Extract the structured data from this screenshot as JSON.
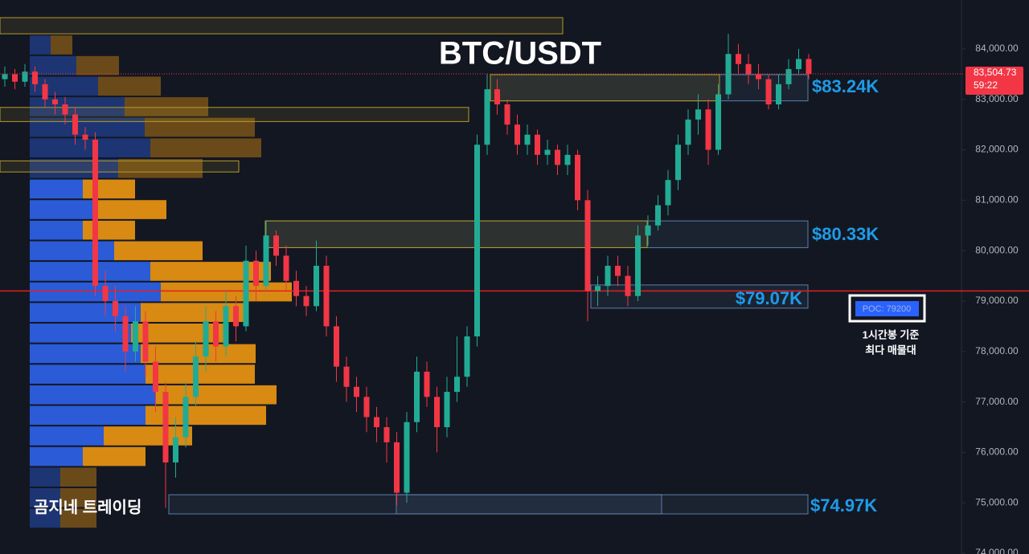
{
  "chart_data": {
    "type": "candlestick",
    "title": "BTC/USDT",
    "ylim": [
      73985,
      84970
    ],
    "yticks": [
      {
        "value": 74000,
        "label": "74,000.00"
      },
      {
        "value": 75000,
        "label": "75,000.00"
      },
      {
        "value": 76000,
        "label": "76,000.00"
      },
      {
        "value": 77000,
        "label": "77,000.00"
      },
      {
        "value": 78000,
        "label": "78,000.00"
      },
      {
        "value": 79000,
        "label": "79,000.00"
      },
      {
        "value": 80000,
        "label": "80,000.00"
      },
      {
        "value": 81000,
        "label": "81,000.00"
      },
      {
        "value": 82000,
        "label": "82,000.00"
      },
      {
        "value": 83000,
        "label": "83,000.00"
      },
      {
        "value": 84000,
        "label": "84,000.00"
      }
    ],
    "up_color": "#22ab94",
    "down_color": "#f23645",
    "ohlc": [
      [
        83400,
        83650,
        83250,
        83500
      ],
      [
        83500,
        83600,
        83200,
        83350
      ],
      [
        83350,
        83700,
        83250,
        83550
      ],
      [
        83550,
        83650,
        83150,
        83300
      ],
      [
        83300,
        83400,
        82850,
        83000
      ],
      [
        83000,
        83150,
        82700,
        82900
      ],
      [
        82900,
        83050,
        82500,
        82700
      ],
      [
        82700,
        82850,
        82100,
        82300
      ],
      [
        82300,
        82450,
        82000,
        82200
      ],
      [
        82200,
        82350,
        79100,
        79300
      ],
      [
        79300,
        79600,
        78700,
        79000
      ],
      [
        79000,
        79300,
        78400,
        78700
      ],
      [
        78700,
        78900,
        77600,
        78000
      ],
      [
        78000,
        78900,
        77800,
        78600
      ],
      [
        78600,
        78800,
        77500,
        77800
      ],
      [
        77800,
        78100,
        76800,
        77200
      ],
      [
        77200,
        77400,
        74900,
        75800
      ],
      [
        75800,
        76700,
        75500,
        76300
      ],
      [
        76300,
        77400,
        76100,
        77100
      ],
      [
        77100,
        78200,
        76900,
        77900
      ],
      [
        77900,
        78900,
        77600,
        78600
      ],
      [
        78600,
        78800,
        77800,
        78100
      ],
      [
        78100,
        79200,
        77900,
        78900
      ],
      [
        78900,
        79100,
        78200,
        78500
      ],
      [
        78500,
        80100,
        78400,
        79800
      ],
      [
        79800,
        80000,
        79000,
        79300
      ],
      [
        79300,
        80600,
        79200,
        80300
      ],
      [
        80300,
        80400,
        79700,
        79900
      ],
      [
        79900,
        80100,
        79200,
        79400
      ],
      [
        79400,
        79600,
        78900,
        79100
      ],
      [
        79100,
        79300,
        78700,
        78900
      ],
      [
        78900,
        80200,
        78800,
        79700
      ],
      [
        79700,
        79900,
        78300,
        78500
      ],
      [
        78500,
        78700,
        77400,
        77700
      ],
      [
        77700,
        77900,
        77000,
        77300
      ],
      [
        77300,
        77500,
        76800,
        77100
      ],
      [
        77100,
        77300,
        76400,
        76700
      ],
      [
        76700,
        76900,
        76200,
        76500
      ],
      [
        76500,
        76700,
        75800,
        76200
      ],
      [
        76200,
        76400,
        74950,
        75200
      ],
      [
        75200,
        76800,
        75000,
        76600
      ],
      [
        76600,
        77900,
        76400,
        77600
      ],
      [
        77600,
        77800,
        76900,
        77100
      ],
      [
        77100,
        77300,
        76000,
        76500
      ],
      [
        76500,
        77500,
        76300,
        77200
      ],
      [
        77200,
        78300,
        77000,
        77500
      ],
      [
        77500,
        78500,
        77300,
        78300
      ],
      [
        78300,
        82300,
        78100,
        82100
      ],
      [
        82100,
        83500,
        81900,
        83200
      ],
      [
        83200,
        83400,
        82700,
        82900
      ],
      [
        82900,
        83000,
        82300,
        82500
      ],
      [
        82500,
        82700,
        81900,
        82100
      ],
      [
        82100,
        82500,
        81900,
        82300
      ],
      [
        82300,
        82400,
        81700,
        81900
      ],
      [
        81900,
        82200,
        81700,
        82000
      ],
      [
        82000,
        82100,
        81500,
        81700
      ],
      [
        81700,
        82100,
        81500,
        81900
      ],
      [
        81900,
        82000,
        80800,
        81000
      ],
      [
        81000,
        81200,
        78600,
        79200
      ],
      [
        79200,
        79500,
        78900,
        79300
      ],
      [
        79300,
        79900,
        79100,
        79700
      ],
      [
        79700,
        79900,
        79300,
        79500
      ],
      [
        79500,
        79700,
        78900,
        79100
      ],
      [
        79100,
        80500,
        79000,
        80300
      ],
      [
        80300,
        80700,
        80100,
        80500
      ],
      [
        80500,
        81100,
        80400,
        80900
      ],
      [
        80900,
        81600,
        80700,
        81400
      ],
      [
        81400,
        82300,
        81200,
        82100
      ],
      [
        82100,
        82800,
        81900,
        82600
      ],
      [
        82600,
        83100,
        82300,
        82800
      ],
      [
        82800,
        83000,
        81700,
        82000
      ],
      [
        82000,
        83300,
        81900,
        83100
      ],
      [
        83100,
        84300,
        83000,
        83900
      ],
      [
        83900,
        84100,
        83500,
        83700
      ],
      [
        83700,
        83900,
        83300,
        83500
      ],
      [
        83500,
        83700,
        83200,
        83400
      ],
      [
        83400,
        83500,
        82800,
        82900
      ],
      [
        82900,
        83500,
        82800,
        83300
      ],
      [
        83300,
        83800,
        83200,
        83600
      ],
      [
        83600,
        84000,
        83500,
        83800
      ],
      [
        83800,
        83900,
        83400,
        83504.73
      ]
    ],
    "last_price": {
      "value": 83504.73,
      "label": "83,504.73"
    },
    "countdown": "59:22",
    "volume_profile": {
      "bins": [
        74490,
        74898,
        75306,
        75714,
        76122,
        76530,
        76938,
        77346,
        77754,
        78162,
        78570,
        78978,
        79386,
        79794,
        80202,
        80610,
        81018,
        81426,
        81834,
        82242,
        82650,
        83058,
        83466,
        83874,
        84282
      ],
      "buy": [
        38,
        38,
        38,
        66,
        92,
        144,
        157,
        144,
        138,
        126,
        138,
        163,
        150,
        105,
        66,
        84,
        66,
        110,
        150,
        143,
        118,
        85,
        58,
        26
      ],
      "sell": [
        45,
        45,
        45,
        78,
        110,
        150,
        150,
        136,
        143,
        120,
        130,
        163,
        150,
        110,
        65,
        86,
        65,
        105,
        138,
        137,
        104,
        78,
        53,
        27
      ],
      "buy_color": "#2b5bd7",
      "sell_color": "#d88a12",
      "value_area": [
        75710,
        81750
      ]
    },
    "poc": {
      "value": 79200,
      "label": "POC: 79200",
      "color": "#e21f1f"
    },
    "poc_note": [
      "1시간봉 기준",
      "최다 매물대"
    ],
    "zones": [
      {
        "low": 84300,
        "high": 84620,
        "color": "#b59a2a"
      },
      {
        "low": 82560,
        "high": 82840,
        "color": "#b59a2a"
      },
      {
        "low": 81560,
        "high": 81780,
        "color": "#b59a2a"
      },
      {
        "low": 82970,
        "high": 83490,
        "color": "#5b7fa8"
      },
      {
        "low": 82970,
        "high": 83490,
        "color": "#b59a2a"
      },
      {
        "low": 80060,
        "high": 80590,
        "color": "#5b7fa8"
      },
      {
        "low": 80060,
        "high": 80590,
        "color": "#b59a2a"
      },
      {
        "low": 78860,
        "high": 79320,
        "color": "#5b7fa8"
      },
      {
        "low": 74780,
        "high": 75160,
        "color": "#5b7fa8"
      },
      {
        "low": 74780,
        "high": 75160,
        "color": "#5b7fa8"
      }
    ],
    "annotations": [
      "$83.24K",
      "$80.33K",
      "$79.07K",
      "$74.97K"
    ],
    "watermark": "곰지네 트레이딩"
  }
}
